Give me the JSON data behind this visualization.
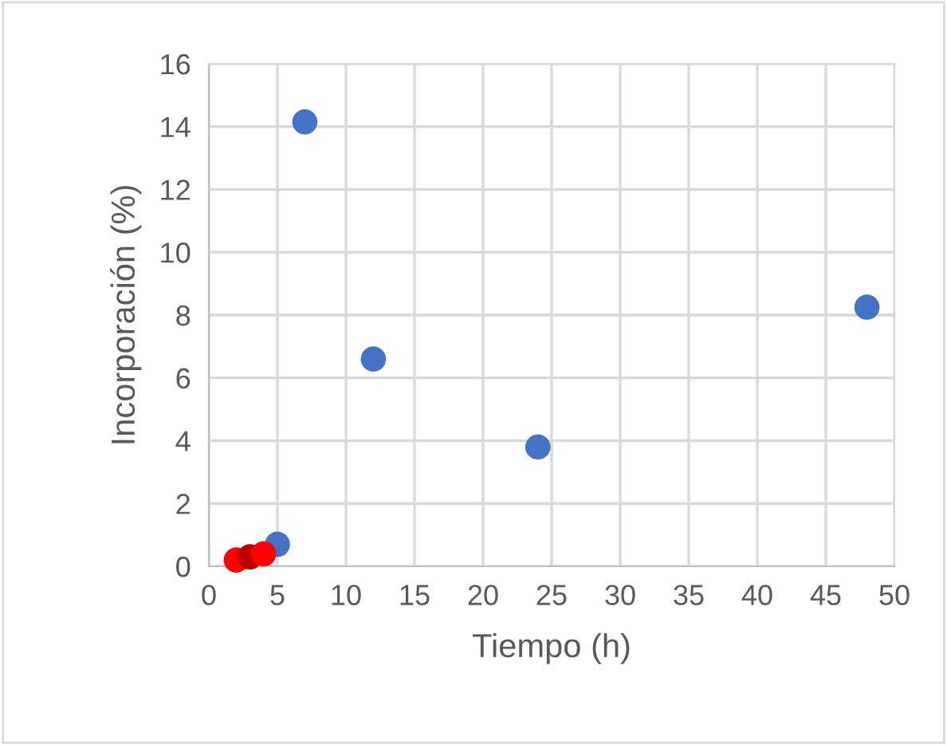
{
  "chart_data": {
    "type": "scatter",
    "xlabel": "Tiempo (h)",
    "ylabel": "Incorporación (%)",
    "xlim": [
      0,
      50
    ],
    "xticks": [
      0,
      5,
      10,
      15,
      20,
      25,
      30,
      35,
      40,
      45,
      50
    ],
    "ylim": [
      0,
      16
    ],
    "yticks": [
      0,
      2,
      4,
      6,
      8,
      10,
      12,
      14,
      16
    ],
    "grid": true,
    "marker": "circle",
    "legend": false,
    "series": [
      {
        "color": "#4472c4",
        "x": [
          5,
          7,
          12,
          24,
          48
        ],
        "values": [
          0.7,
          14.15,
          6.6,
          3.8,
          8.25
        ]
      },
      {
        "color": "#ff0000",
        "colors": [
          "#ff0000",
          "#c00000",
          "#ff0000"
        ],
        "x": [
          2,
          3,
          4
        ],
        "values": [
          0.2,
          0.3,
          0.4
        ]
      }
    ]
  }
}
